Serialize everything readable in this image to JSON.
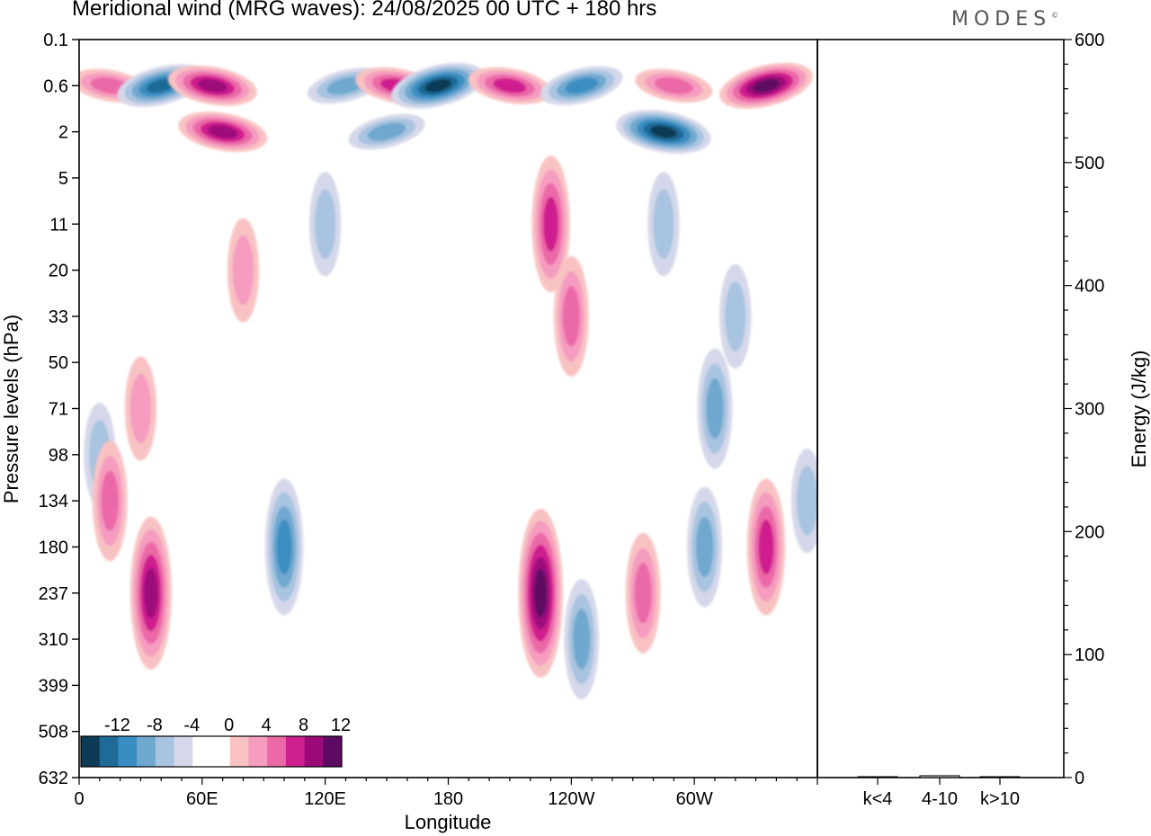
{
  "title": "Meridional wind (MRG waves):  24/08/2025  00 UTC  + 180 hrs",
  "logo": "MODES",
  "chart_data": [
    {
      "type": "heatmap",
      "title": "Meridional wind (MRG waves):  24/08/2025  00 UTC  + 180 hrs",
      "xlabel": "Longitude",
      "ylabel": "Pressure levels (hPa)",
      "x_ticks": [
        {
          "lon": 0,
          "label": "0"
        },
        {
          "lon": 60,
          "label": "60E"
        },
        {
          "lon": 120,
          "label": "120E"
        },
        {
          "lon": 180,
          "label": "180"
        },
        {
          "lon": 240,
          "label": "120W"
        },
        {
          "lon": 300,
          "label": "60W"
        }
      ],
      "xlim": [
        0,
        360
      ],
      "y_levels": [
        "0.1",
        "0.6",
        "2",
        "5",
        "11",
        "20",
        "33",
        "50",
        "71",
        "98",
        "134",
        "180",
        "237",
        "310",
        "399",
        "508",
        "632"
      ],
      "colorbar": {
        "labels": [
          "-12",
          "-8",
          "-4",
          "0",
          "4",
          "8",
          "12"
        ],
        "colors": [
          "#0d3b57",
          "#1f6a96",
          "#3a8dc2",
          "#6fa8cf",
          "#a8c4e0",
          "#d5d8ea",
          "#ffffff",
          "#ffffff",
          "#f9c2c2",
          "#f59cc0",
          "#ec69a7",
          "#cf1e8e",
          "#9c0a7a",
          "#5c0a62"
        ]
      },
      "features": [
        {
          "lon": 15,
          "level": "0.6",
          "v": 6
        },
        {
          "lon": 40,
          "level": "0.6",
          "v": -10
        },
        {
          "lon": 65,
          "level": "0.6",
          "v": 10
        },
        {
          "lon": 130,
          "level": "0.6",
          "v": -6
        },
        {
          "lon": 155,
          "level": "0.6",
          "v": 8
        },
        {
          "lon": 175,
          "level": "0.6",
          "v": -12
        },
        {
          "lon": 210,
          "level": "0.6",
          "v": 8
        },
        {
          "lon": 245,
          "level": "0.6",
          "v": -8
        },
        {
          "lon": 290,
          "level": "0.6",
          "v": 6
        },
        {
          "lon": 335,
          "level": "0.6",
          "v": 12
        },
        {
          "lon": 70,
          "level": "2",
          "v": 10
        },
        {
          "lon": 150,
          "level": "2",
          "v": -6
        },
        {
          "lon": 285,
          "level": "2",
          "v": -12
        },
        {
          "lon": 120,
          "level": "11",
          "v": -4
        },
        {
          "lon": 230,
          "level": "11",
          "v": 8
        },
        {
          "lon": 285,
          "level": "11",
          "v": -4
        },
        {
          "lon": 80,
          "level": "20",
          "v": 4
        },
        {
          "lon": 240,
          "level": "33",
          "v": 6
        },
        {
          "lon": 320,
          "level": "33",
          "v": -4
        },
        {
          "lon": 30,
          "level": "71",
          "v": 4
        },
        {
          "lon": 310,
          "level": "71",
          "v": -6
        },
        {
          "lon": 10,
          "level": "98",
          "v": -4
        },
        {
          "lon": 15,
          "level": "134",
          "v": 6
        },
        {
          "lon": 35,
          "level": "237",
          "v": 10
        },
        {
          "lon": 100,
          "level": "180",
          "v": -8
        },
        {
          "lon": 225,
          "level": "237",
          "v": 12
        },
        {
          "lon": 245,
          "level": "310",
          "v": -6
        },
        {
          "lon": 275,
          "level": "237",
          "v": 6
        },
        {
          "lon": 305,
          "level": "180",
          "v": -6
        },
        {
          "lon": 335,
          "level": "180",
          "v": 8
        },
        {
          "lon": 355,
          "level": "134",
          "v": -4
        }
      ]
    },
    {
      "type": "bar",
      "ylabel": "Energy (J/kg)",
      "ylim": [
        0,
        600
      ],
      "y_ticks": [
        "0",
        "100",
        "200",
        "300",
        "400",
        "500",
        "600"
      ],
      "categories": [
        "k<4",
        "4-10",
        "k>10"
      ],
      "values": [
        0.3,
        1.5,
        0.2
      ]
    }
  ]
}
